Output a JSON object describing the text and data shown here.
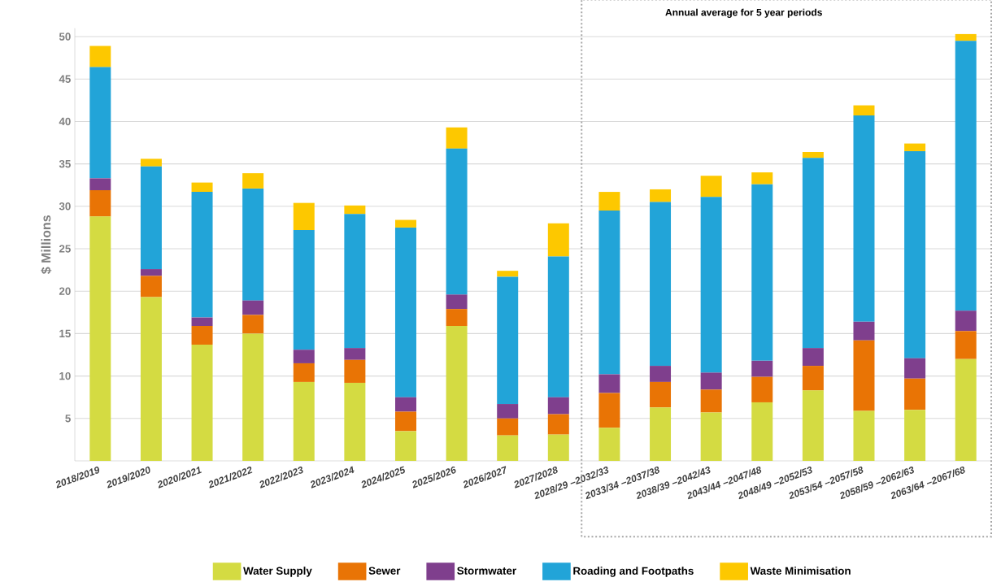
{
  "chart_data": {
    "type": "bar",
    "stacked": true,
    "ylabel": "$ Millions",
    "categories": [
      "2018/2019",
      "2019/2020",
      "2020/2021",
      "2021/2022",
      "2022/2023",
      "2023/2024",
      "2024/2025",
      "2025/2026",
      "2026/2027",
      "2027/2028",
      "2028/29 –2032/33",
      "2033/34 –2037/38",
      "2038/39 –2042/43",
      "2043/44 –2047/48",
      "2048/49 –2052/53",
      "2053/54 –2057/58",
      "2058/59 –2062/63",
      "2063/64 –2067/68"
    ],
    "series": [
      {
        "name": "Water Supply",
        "color": "#d4db42",
        "values": [
          28.8,
          19.3,
          13.7,
          15.0,
          9.3,
          9.2,
          3.5,
          15.9,
          3.0,
          3.1,
          3.9,
          6.3,
          5.7,
          6.9,
          8.3,
          5.9,
          6.0,
          12.0
        ]
      },
      {
        "name": "Sewer",
        "color": "#e97405",
        "values": [
          3.1,
          2.5,
          2.2,
          2.2,
          2.2,
          2.7,
          2.3,
          2.0,
          2.0,
          2.4,
          4.1,
          3.0,
          2.7,
          3.0,
          2.9,
          8.3,
          3.7,
          3.3
        ]
      },
      {
        "name": "Stormwater",
        "color": "#7f3f8d",
        "values": [
          1.4,
          0.8,
          1.0,
          1.7,
          1.6,
          1.4,
          1.7,
          1.7,
          1.7,
          2.0,
          2.2,
          1.9,
          2.0,
          1.9,
          2.1,
          2.2,
          2.4,
          2.4
        ]
      },
      {
        "name": "Roading and Footpaths",
        "color": "#22a4d8",
        "values": [
          13.1,
          12.1,
          14.8,
          13.2,
          14.1,
          15.8,
          20.0,
          17.2,
          15.0,
          16.6,
          19.3,
          19.3,
          20.7,
          20.8,
          22.4,
          24.3,
          24.4,
          31.8
        ]
      },
      {
        "name": "Waste Minimisation",
        "color": "#fdc800",
        "values": [
          2.5,
          0.9,
          1.1,
          1.8,
          3.2,
          1.0,
          0.9,
          2.5,
          0.7,
          3.9,
          2.2,
          1.5,
          2.5,
          1.4,
          0.7,
          1.2,
          0.9,
          0.8
        ]
      }
    ],
    "ylim": [
      0,
      51
    ],
    "yticks": [
      5,
      10,
      15,
      20,
      25,
      30,
      35,
      40,
      45,
      50
    ],
    "annotations": [
      "Annual average for 5 year periods"
    ],
    "grid": "y",
    "legend": "bottom"
  }
}
